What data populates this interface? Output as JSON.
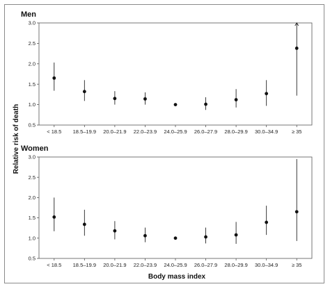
{
  "chart_data": {
    "type": "scatter",
    "xlabel": "Body mass index",
    "ylabel": "Relative risk of death",
    "categories": [
      "< 18.5",
      "18.5–19.9",
      "20.0–21.9",
      "22.0–23.9",
      "24.0–25.9",
      "26.0–27.9",
      "28.0–29.9",
      "30.0–34.9",
      "≥ 35"
    ],
    "yticks": [
      "0.5",
      "1.0",
      "1.5",
      "2.0",
      "2.5",
      "3.0"
    ],
    "ylim": [
      0.5,
      3.0
    ],
    "grid": false,
    "series": [
      {
        "name": "Men",
        "values": [
          1.65,
          1.32,
          1.15,
          1.14,
          1.0,
          1.01,
          1.12,
          1.27,
          2.38
        ],
        "lower": [
          1.34,
          1.09,
          1.0,
          1.0,
          1.0,
          0.87,
          0.93,
          0.97,
          1.22
        ],
        "upper": [
          2.03,
          1.6,
          1.33,
          1.3,
          1.0,
          1.18,
          1.38,
          1.6,
          3.0
        ],
        "upper_truncated": [
          false,
          false,
          false,
          false,
          false,
          false,
          false,
          false,
          true
        ]
      },
      {
        "name": "Women",
        "values": [
          1.52,
          1.34,
          1.18,
          1.06,
          1.0,
          1.03,
          1.08,
          1.39,
          1.65
        ],
        "lower": [
          1.17,
          1.06,
          0.97,
          0.9,
          1.0,
          0.87,
          0.86,
          1.08,
          0.93
        ],
        "upper": [
          2.0,
          1.7,
          1.42,
          1.26,
          1.0,
          1.26,
          1.4,
          1.8,
          2.95
        ],
        "upper_truncated": [
          false,
          false,
          false,
          false,
          false,
          false,
          false,
          false,
          false
        ]
      }
    ]
  }
}
